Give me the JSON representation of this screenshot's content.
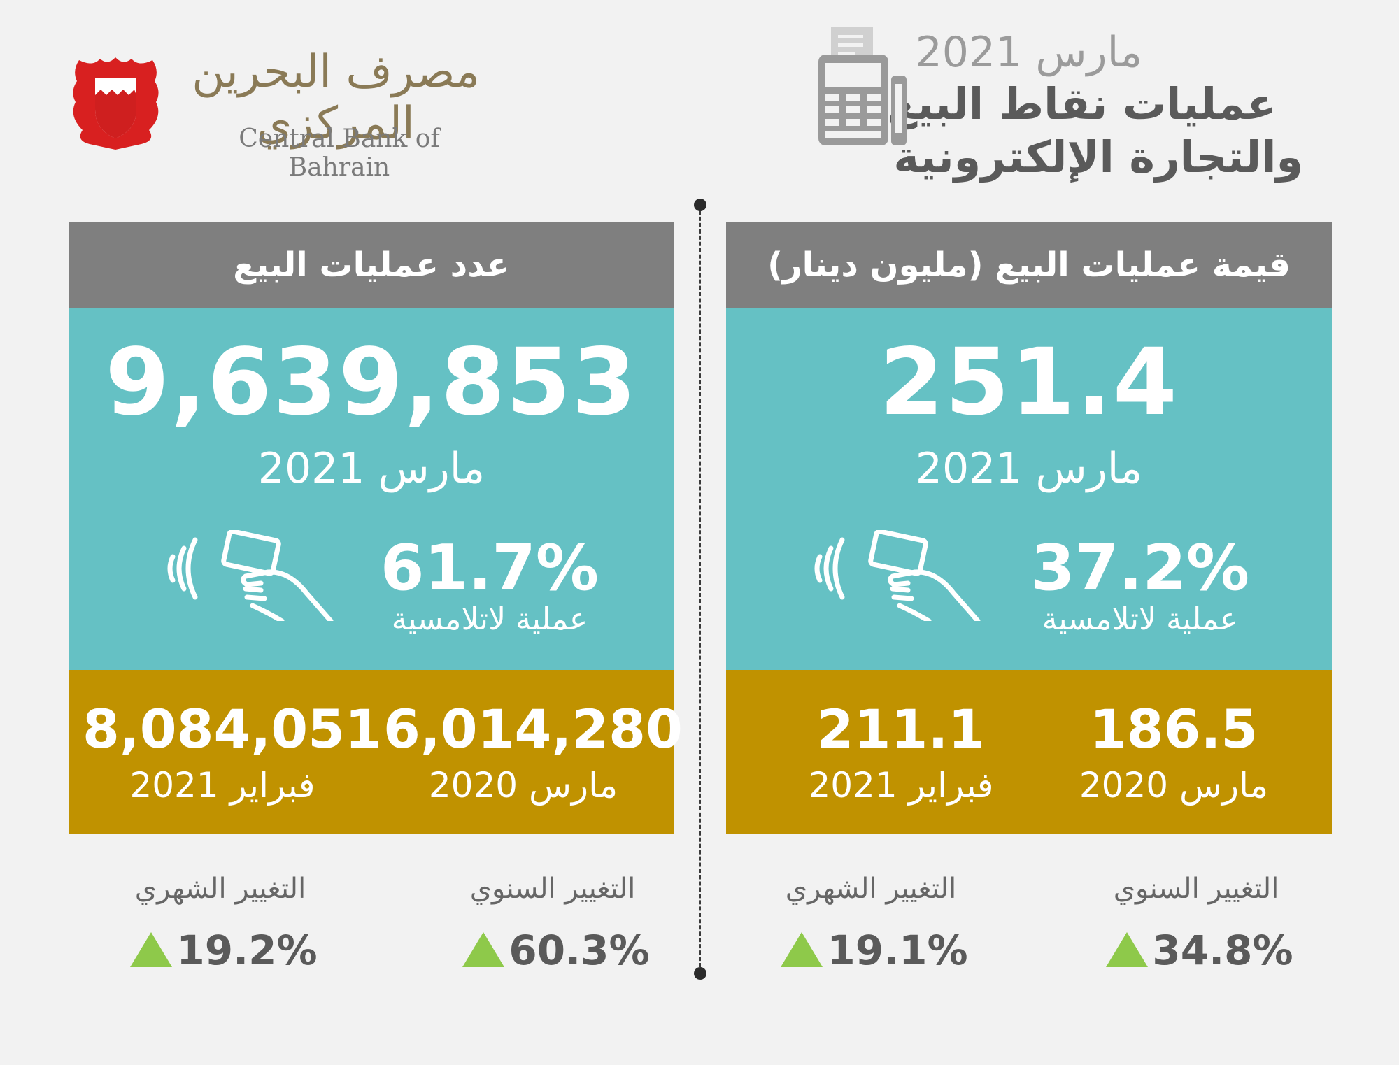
{
  "header": {
    "date": "مارس 2021",
    "title_line1": "عمليات نقاط البيع",
    "title_line2": "والتجارة الإلكترونية"
  },
  "logo": {
    "arabic_name": "مصرف البحرين المركزي",
    "english_name": "Central Bank of Bahrain"
  },
  "value_panel": {
    "title": "قيمة عمليات البيع (مليون دينار)",
    "main_value": "251.4",
    "main_date": "مارس 2021",
    "contactless_pct": "37.2%",
    "contactless_label": "عملية لاتلامسية",
    "comparisons": [
      {
        "value": "186.5",
        "date": "مارس 2020"
      },
      {
        "value": "211.1",
        "date": "فبراير 2021"
      }
    ],
    "changes": [
      {
        "label": "التغيير السنوي",
        "value": "34.8%"
      },
      {
        "label": "التغيير الشهري",
        "value": "19.1%"
      }
    ]
  },
  "count_panel": {
    "title": "عدد عمليات البيع",
    "main_value": "9,639,853",
    "main_date": "مارس 2021",
    "contactless_pct": "61.7%",
    "contactless_label": "عملية لاتلامسية",
    "comparisons": [
      {
        "value": "6,014,280",
        "date": "مارس 2020"
      },
      {
        "value": "8,084,051",
        "date": "فبراير 2021"
      }
    ],
    "changes": [
      {
        "label": "التغيير السنوي",
        "value": "60.3%"
      },
      {
        "label": "التغيير الشهري",
        "value": "19.2%"
      }
    ]
  },
  "colors": {
    "header_gray": "#7f7f7f",
    "teal": "#65c1c4",
    "gold": "#c09200",
    "up_arrow_green": "#8ec94a"
  },
  "icons": [
    "pos-terminal-icon",
    "bahrain-emblem-icon",
    "contactless-card-icon",
    "up-arrow-icon"
  ]
}
